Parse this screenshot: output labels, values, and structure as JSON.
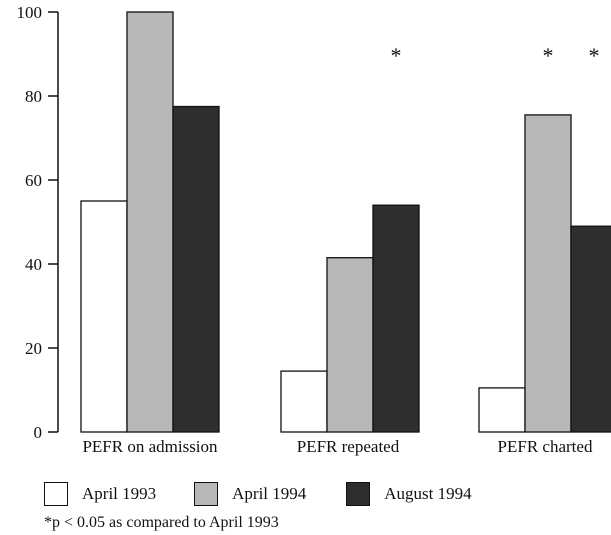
{
  "chart_data": {
    "type": "bar",
    "categories": [
      "PEFR on admission",
      "PEFR repeated",
      "PEFR charted"
    ],
    "series": [
      {
        "name": "April 1993",
        "values": [
          55,
          14.5,
          10.5
        ],
        "color": "#ffffff"
      },
      {
        "name": "April 1994",
        "values": [
          100,
          41.5,
          75.5
        ],
        "color": "#b8b8b8"
      },
      {
        "name": "August 1994",
        "values": [
          77.5,
          54,
          49
        ],
        "color": "#2e2e2e"
      }
    ],
    "significance": [
      {
        "category": "PEFR on admission",
        "April 1994": false,
        "August 1994": false
      },
      {
        "category": "PEFR repeated",
        "April 1994": false,
        "August 1994": true
      },
      {
        "category": "PEFR charted",
        "April 1994": true,
        "August 1994": true
      }
    ],
    "significance_marker": "*",
    "yticks": [
      "0",
      "20",
      "40",
      "60",
      "80",
      "100"
    ],
    "ylim": [
      0,
      100
    ],
    "grid": false,
    "legend_position": "bottom",
    "footnote": "*p < 0.05 as compared to April 1993"
  }
}
